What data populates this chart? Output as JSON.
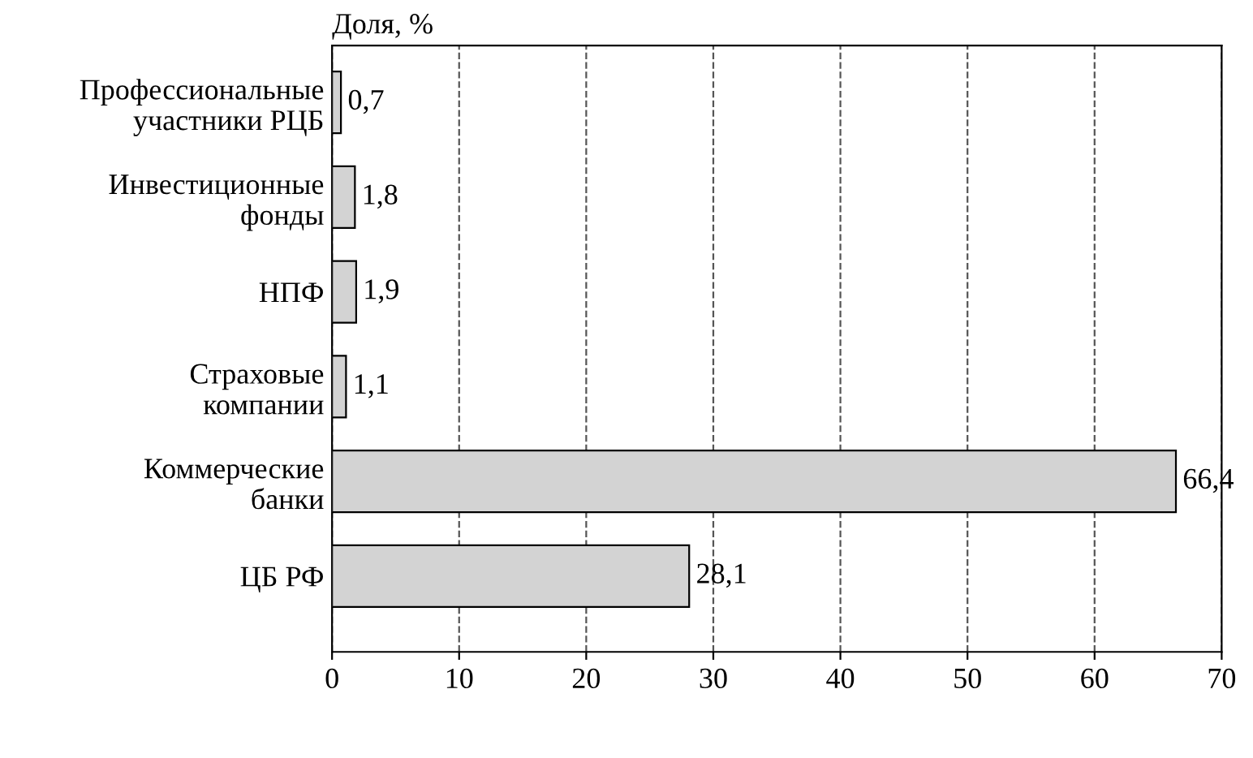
{
  "chart_data": {
    "type": "bar",
    "orientation": "horizontal",
    "xlabel": "Доля, %",
    "categories": [
      "Профессиональные\nучастники РЦБ",
      "Инвестиционные\nфонды",
      "НПФ",
      "Страховые\nкомпании",
      "Коммерческие\nбанки",
      "ЦБ РФ"
    ],
    "values": [
      0.7,
      1.8,
      1.9,
      1.1,
      66.4,
      28.1
    ],
    "value_labels": [
      "0,7",
      "1,8",
      "1,9",
      "1,1",
      "66,4",
      "28,1"
    ],
    "color": "#d3d3d3",
    "xlim": [
      0,
      70
    ],
    "xticks": [
      0,
      10,
      20,
      30,
      40,
      50,
      60,
      70
    ],
    "grid": "x"
  }
}
